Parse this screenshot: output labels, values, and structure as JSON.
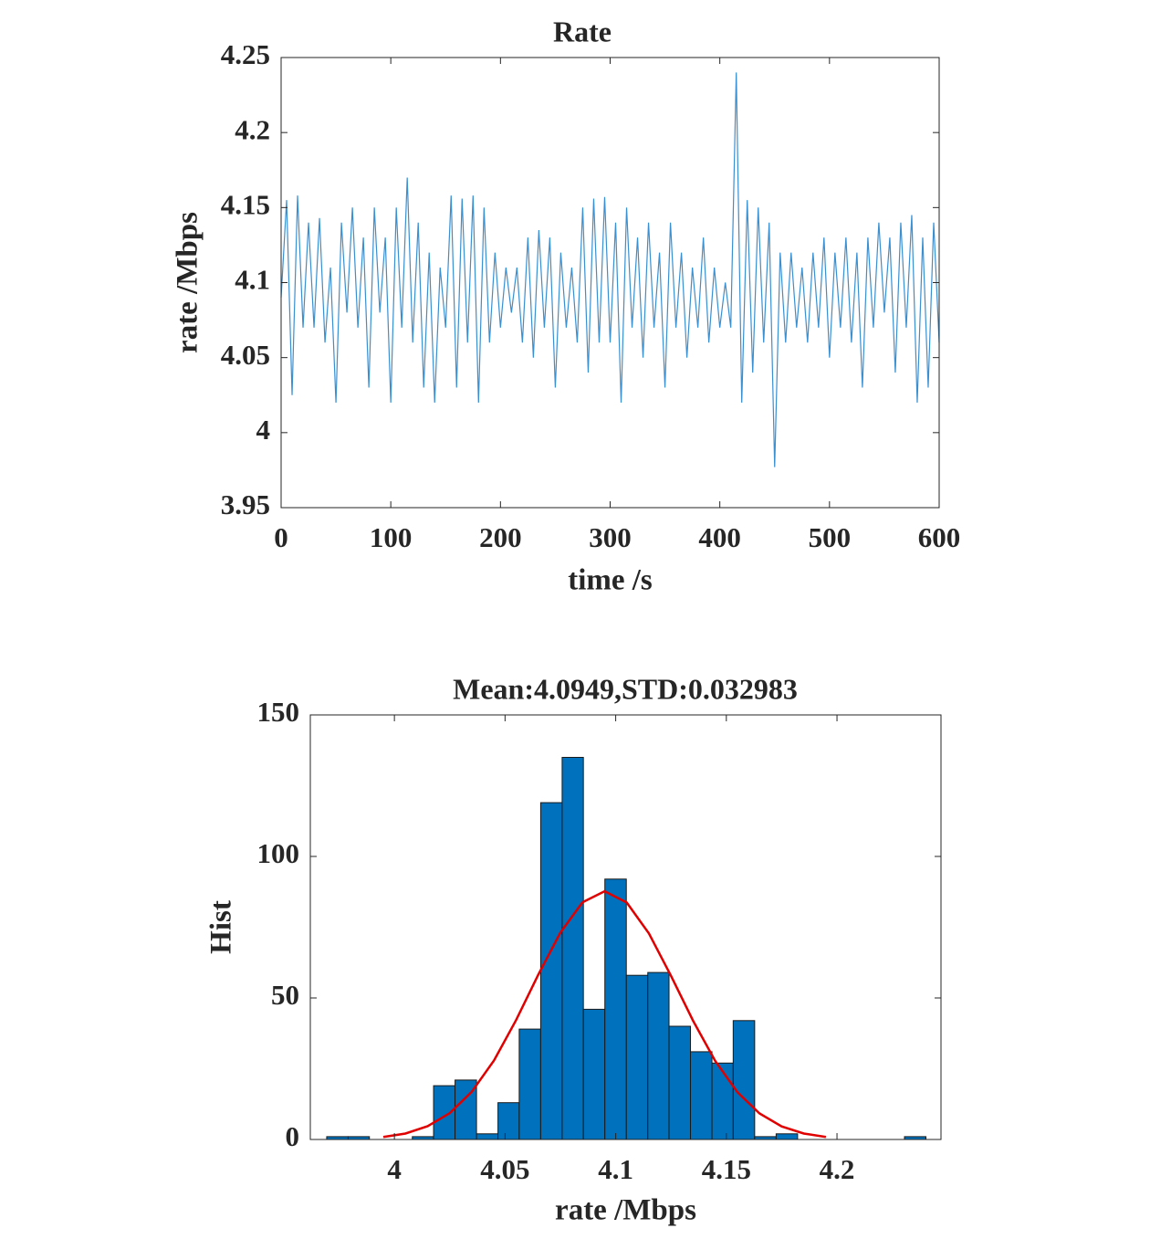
{
  "chart_data": [
    {
      "type": "line",
      "title": "Rate",
      "x_label": "time /s",
      "y_label": "rate /Mbps",
      "xlim": [
        0,
        600
      ],
      "xticks": [
        0,
        100,
        200,
        300,
        400,
        500,
        600
      ],
      "ylim": [
        3.95,
        4.25
      ],
      "yticks": [
        3.95,
        4,
        4.05,
        4.1,
        4.15,
        4.2,
        4.25
      ],
      "grid": false,
      "color": "#3a8fd0",
      "x": [
        0,
        5,
        10,
        15,
        20,
        25,
        30,
        35,
        40,
        45,
        50,
        55,
        60,
        65,
        70,
        75,
        80,
        85,
        90,
        95,
        100,
        105,
        110,
        115,
        120,
        125,
        130,
        135,
        140,
        145,
        150,
        155,
        160,
        165,
        170,
        175,
        180,
        185,
        190,
        195,
        200,
        205,
        210,
        215,
        220,
        225,
        230,
        235,
        240,
        245,
        250,
        255,
        260,
        265,
        270,
        275,
        280,
        285,
        290,
        295,
        300,
        305,
        310,
        315,
        320,
        325,
        330,
        335,
        340,
        345,
        350,
        355,
        360,
        365,
        370,
        375,
        380,
        385,
        390,
        395,
        400,
        405,
        410,
        415,
        420,
        425,
        430,
        435,
        440,
        445,
        450,
        455,
        460,
        465,
        470,
        475,
        480,
        485,
        490,
        495,
        500,
        505,
        510,
        515,
        520,
        525,
        530,
        535,
        540,
        545,
        550,
        555,
        560,
        565,
        570,
        575,
        580,
        585,
        590,
        595,
        600
      ],
      "values": [
        4.09,
        4.155,
        4.025,
        4.158,
        4.07,
        4.14,
        4.07,
        4.143,
        4.06,
        4.11,
        4.02,
        4.14,
        4.08,
        4.15,
        4.07,
        4.13,
        4.03,
        4.15,
        4.08,
        4.13,
        4.02,
        4.15,
        4.07,
        4.17,
        4.06,
        4.14,
        4.03,
        4.12,
        4.02,
        4.11,
        4.07,
        4.158,
        4.03,
        4.156,
        4.06,
        4.158,
        4.02,
        4.15,
        4.06,
        4.12,
        4.07,
        4.11,
        4.08,
        4.11,
        4.06,
        4.13,
        4.05,
        4.135,
        4.07,
        4.13,
        4.03,
        4.12,
        4.07,
        4.11,
        4.06,
        4.15,
        4.04,
        4.156,
        4.06,
        4.157,
        4.06,
        4.14,
        4.02,
        4.15,
        4.07,
        4.13,
        4.05,
        4.14,
        4.07,
        4.12,
        4.03,
        4.14,
        4.07,
        4.12,
        4.05,
        4.11,
        4.07,
        4.13,
        4.06,
        4.11,
        4.07,
        4.1,
        4.07,
        4.24,
        4.02,
        4.155,
        4.04,
        4.15,
        4.06,
        4.14,
        3.977,
        4.12,
        4.06,
        4.12,
        4.07,
        4.11,
        4.06,
        4.12,
        4.07,
        4.13,
        4.05,
        4.12,
        4.07,
        4.13,
        4.06,
        4.12,
        4.03,
        4.13,
        4.07,
        4.14,
        4.08,
        4.13,
        4.04,
        4.14,
        4.07,
        4.145,
        4.02,
        4.13,
        4.03,
        4.14,
        4.06
      ]
    },
    {
      "type": "histogram",
      "title": "Mean:4.0949,STD:0.032983",
      "x_label": "rate /Mbps",
      "y_label": "Hist",
      "xlim": [
        3.962,
        4.247
      ],
      "xticks": [
        4,
        4.05,
        4.1,
        4.15,
        4.2
      ],
      "ylim": [
        0,
        150
      ],
      "yticks": [
        0,
        50,
        100,
        150
      ],
      "grid": false,
      "color": "#0072bd",
      "bins": [
        3.9694,
        3.9791,
        3.9887,
        3.9984,
        4.0081,
        4.0177,
        4.0274,
        4.0371,
        4.0468,
        4.0564,
        4.0661,
        4.0758,
        4.0854,
        4.0951,
        4.1048,
        4.1145,
        4.1241,
        4.1338,
        4.1435,
        4.1531,
        4.1628,
        4.1725,
        4.1822,
        4.1918,
        4.2015,
        4.2112,
        4.2208,
        4.2305,
        4.2402
      ],
      "values": [
        1,
        1,
        0,
        0,
        1,
        19,
        21,
        2,
        13,
        39,
        119,
        135,
        46,
        92,
        58,
        59,
        40,
        31,
        27,
        42,
        1,
        2,
        0,
        0,
        0,
        0,
        0,
        1
      ],
      "fit": {
        "color": "#e00000",
        "x": [
          3.995,
          4.005,
          4.015,
          4.025,
          4.035,
          4.045,
          4.055,
          4.065,
          4.075,
          4.085,
          4.095,
          4.105,
          4.115,
          4.125,
          4.135,
          4.145,
          4.155,
          4.165,
          4.175,
          4.185,
          4.195
        ],
        "values": [
          0.9,
          2.1,
          4.7,
          9.3,
          16.9,
          27.9,
          42.2,
          58.2,
          73.1,
          83.8,
          87.7,
          83.7,
          72.8,
          57.8,
          41.9,
          27.7,
          16.7,
          9.2,
          4.6,
          2.1,
          0.9
        ]
      }
    }
  ]
}
